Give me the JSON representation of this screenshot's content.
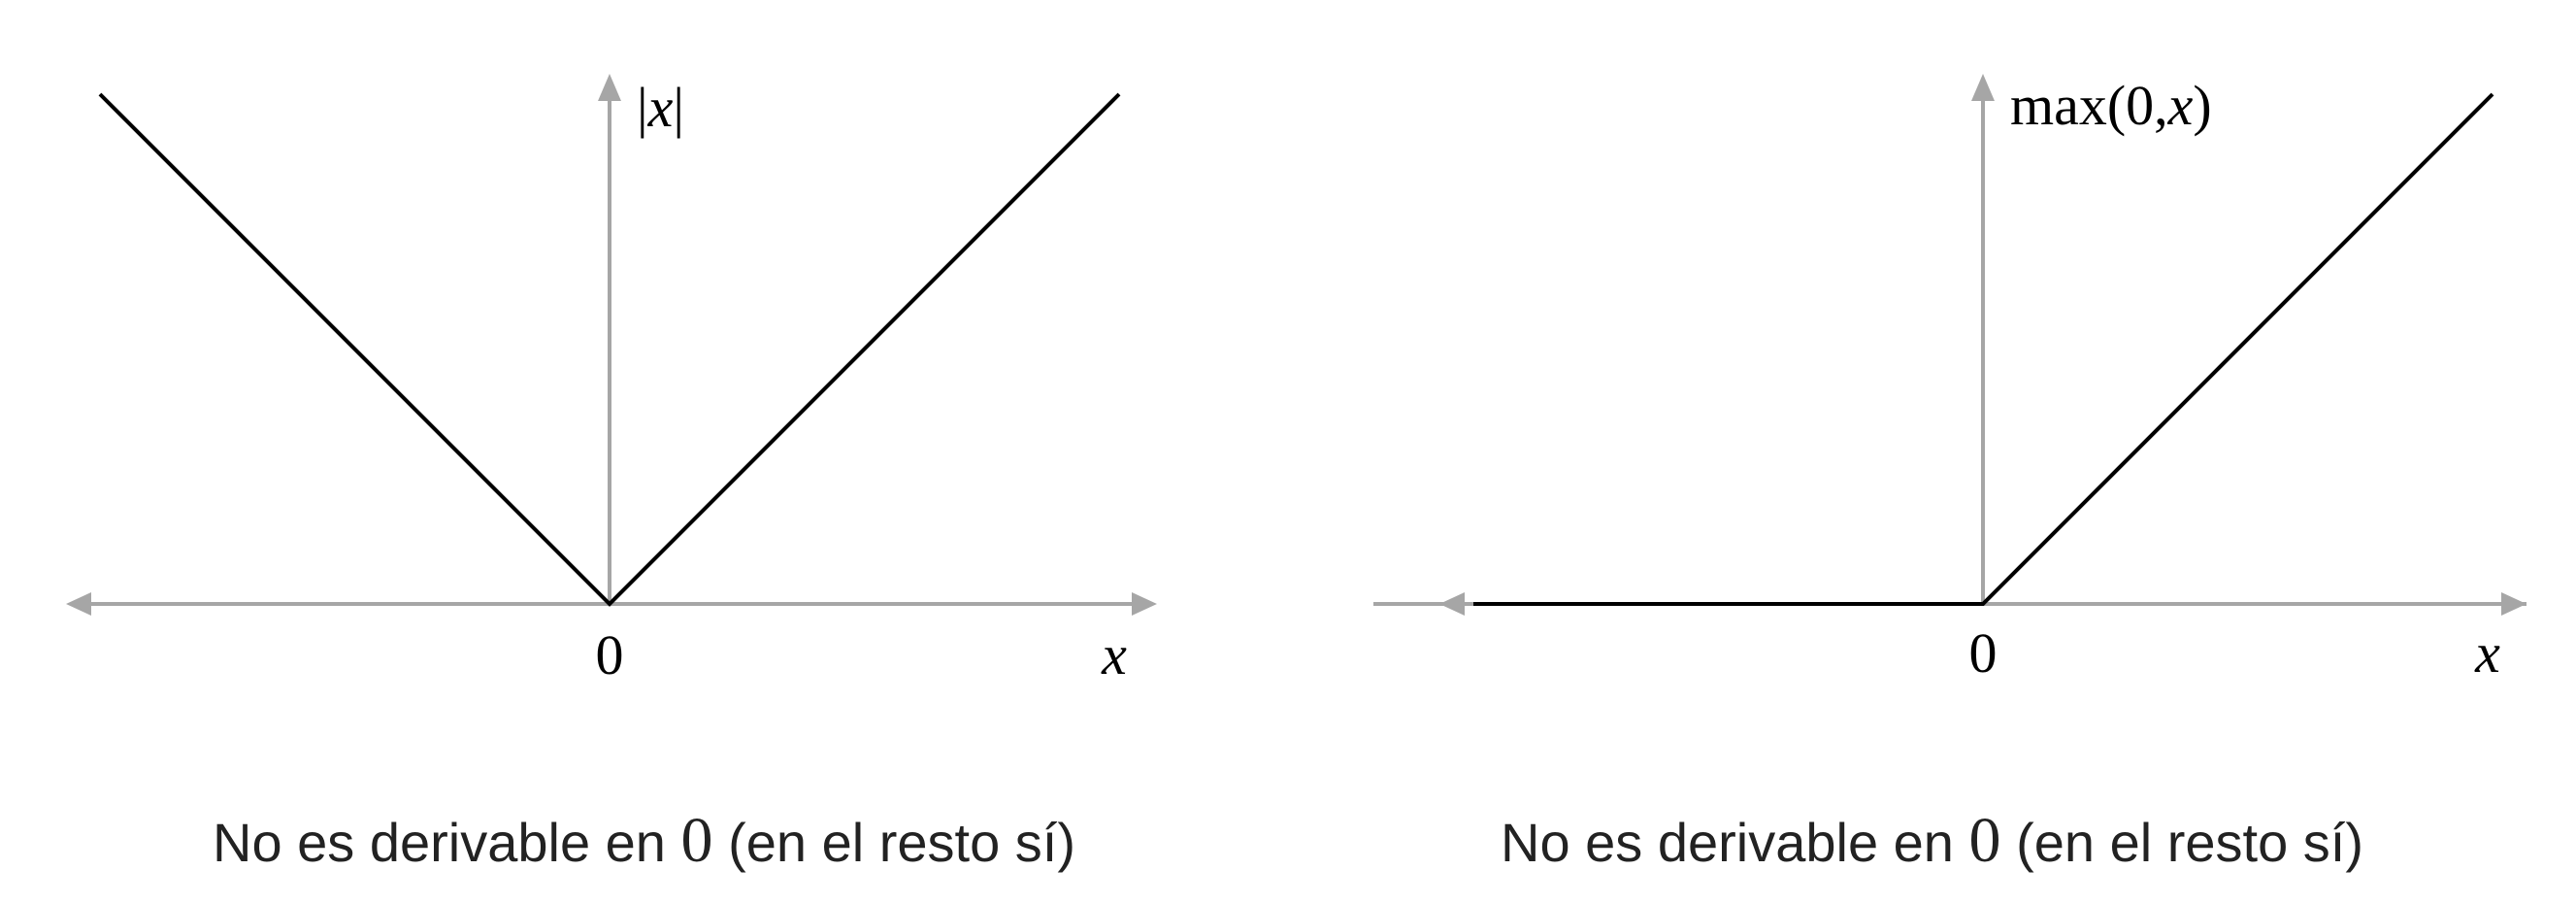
{
  "chart_data": [
    {
      "type": "line",
      "x_axis_label": "x",
      "y_axis_label_parts": [
        "|",
        "x",
        "|"
      ],
      "x_tick_label": "0",
      "xlim": [
        -1.05,
        1.1
      ],
      "ylim": [
        0,
        1.05
      ],
      "series": [
        {
          "x": [
            -1,
            0,
            1
          ],
          "y": [
            1,
            0,
            1
          ]
        }
      ],
      "caption": {
        "before": "No es derivable en ",
        "zero": "0",
        "after": " (en el resto sí)"
      }
    },
    {
      "type": "line",
      "x_axis_label": "x",
      "y_axis_label_parts": [
        "max(0,",
        "x",
        ")"
      ],
      "x_tick_label": "0",
      "xlim": [
        -1.05,
        1.1
      ],
      "ylim": [
        0,
        1.05
      ],
      "series": [
        {
          "x": [
            -1,
            0,
            1
          ],
          "y": [
            0,
            0,
            1
          ]
        }
      ],
      "caption": {
        "before": "No es derivable en ",
        "zero": "0",
        "after": " (en el resto sí)"
      }
    }
  ]
}
